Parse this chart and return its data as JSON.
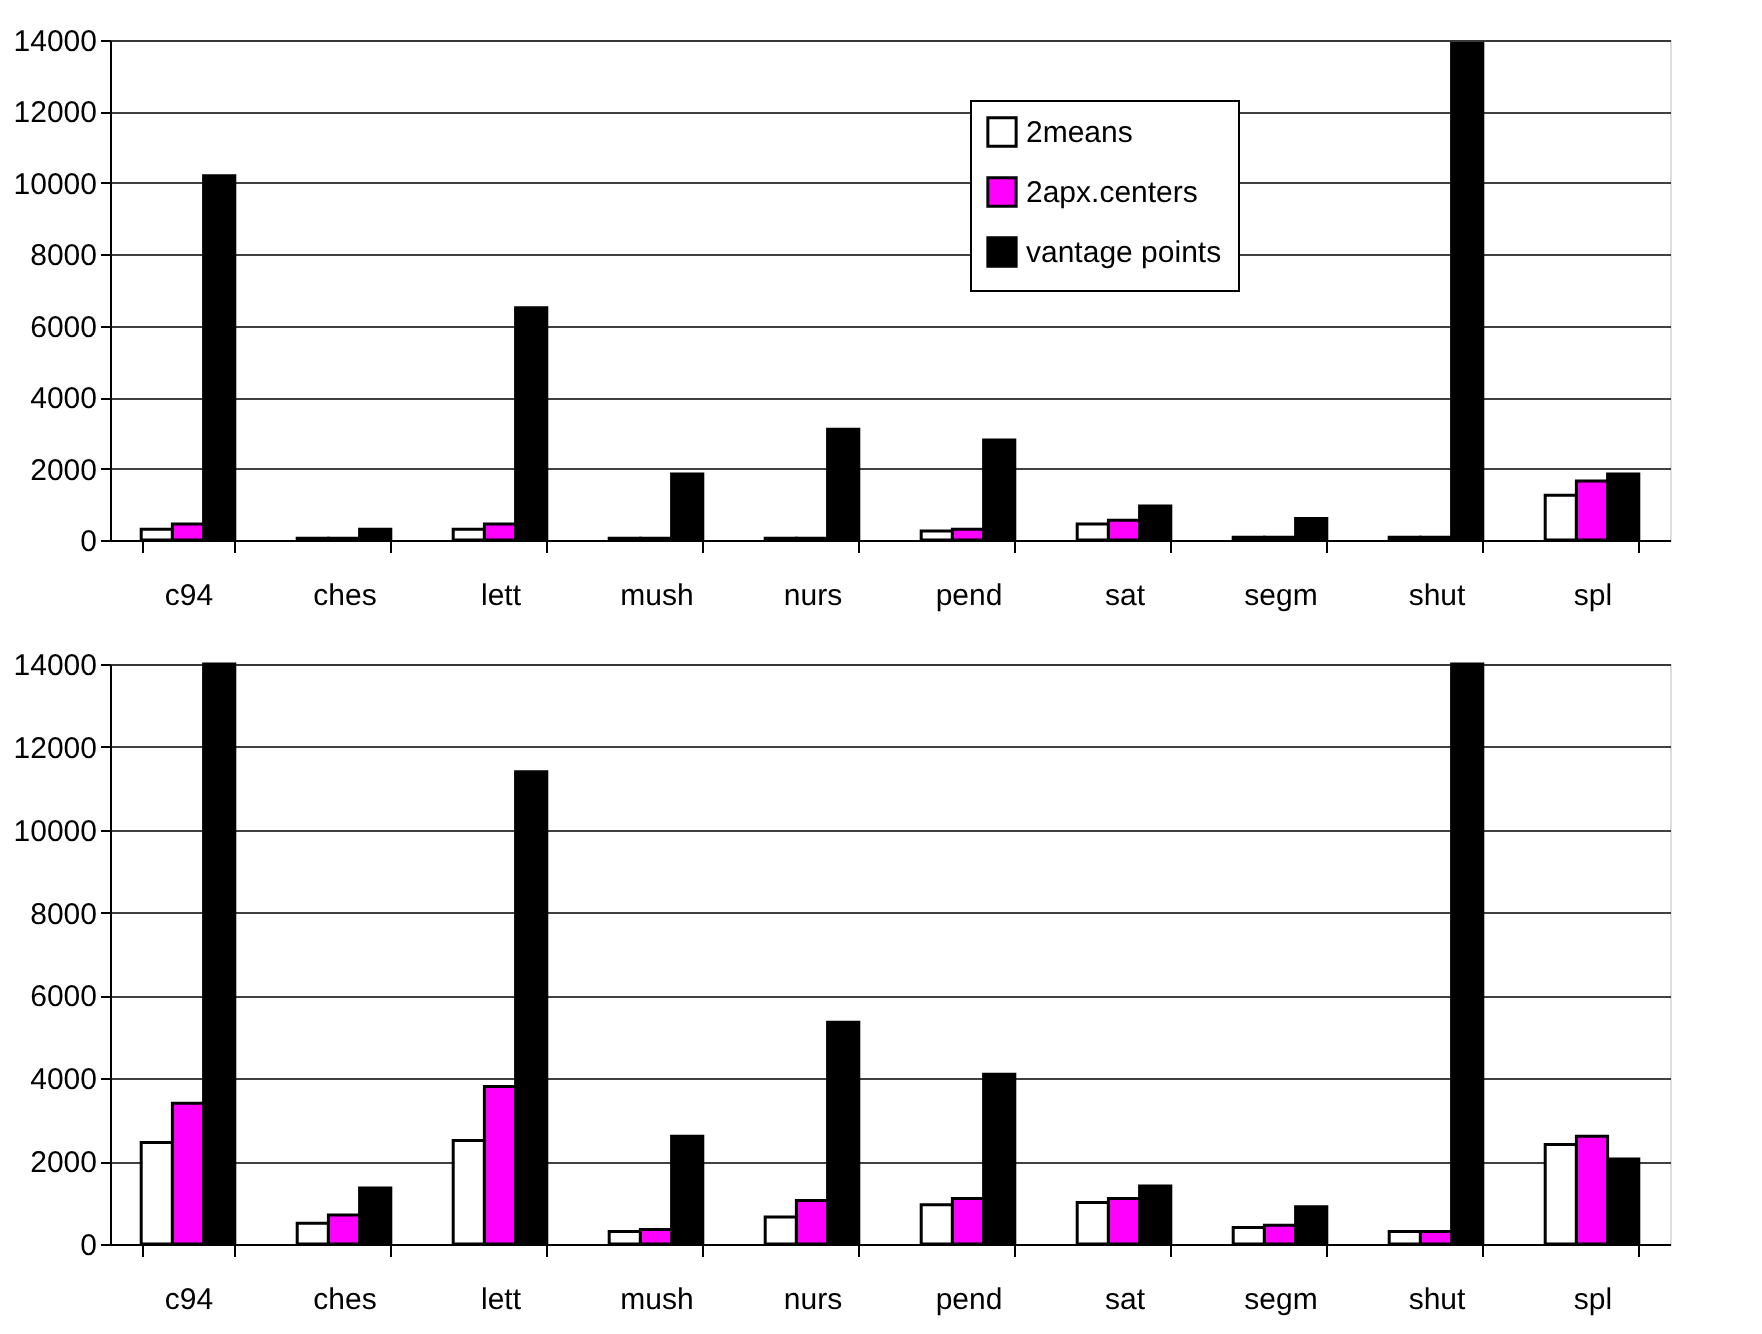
{
  "chart_data": [
    {
      "type": "bar",
      "categories": [
        "c94",
        "ches",
        "lett",
        "mush",
        "nurs",
        "pend",
        "sat",
        "segm",
        "shut",
        "spl"
      ],
      "series": [
        {
          "name": "2means",
          "color": "#ffffff",
          "values": [
            300,
            50,
            300,
            50,
            50,
            250,
            450,
            80,
            80,
            1250
          ]
        },
        {
          "name": "2apx.centers",
          "color": "#ff00ff",
          "values": [
            450,
            50,
            450,
            50,
            50,
            300,
            550,
            80,
            80,
            1650
          ]
        },
        {
          "name": "vantage points",
          "color": "#000000",
          "values": [
            10200,
            300,
            6500,
            1850,
            3100,
            2800,
            950,
            600,
            13900,
            1850
          ]
        }
      ],
      "ylim": [
        0,
        14000
      ],
      "yticks": [
        0,
        2000,
        4000,
        6000,
        8000,
        10000,
        12000,
        14000
      ],
      "grid": "y",
      "legend": "top right"
    },
    {
      "type": "bar",
      "categories": [
        "c94",
        "ches",
        "lett",
        "mush",
        "nurs",
        "pend",
        "sat",
        "segm",
        "shut",
        "spl"
      ],
      "series": [
        {
          "name": "2means",
          "color": "#ffffff",
          "values": [
            2450,
            500,
            2500,
            300,
            650,
            950,
            1000,
            400,
            300,
            2400
          ]
        },
        {
          "name": "2apx.centers",
          "color": "#ff00ff",
          "values": [
            3400,
            700,
            3800,
            350,
            1050,
            1100,
            1100,
            450,
            300,
            2600
          ]
        },
        {
          "name": "vantage points",
          "color": "#000000",
          "values": [
            14000,
            1350,
            11400,
            2600,
            5350,
            4100,
            1400,
            900,
            14000,
            2050
          ]
        }
      ],
      "ylim": [
        0,
        14000
      ],
      "yticks": [
        0,
        2000,
        4000,
        6000,
        8000,
        10000,
        12000,
        14000
      ],
      "grid": "y",
      "legend": "top right"
    }
  ]
}
